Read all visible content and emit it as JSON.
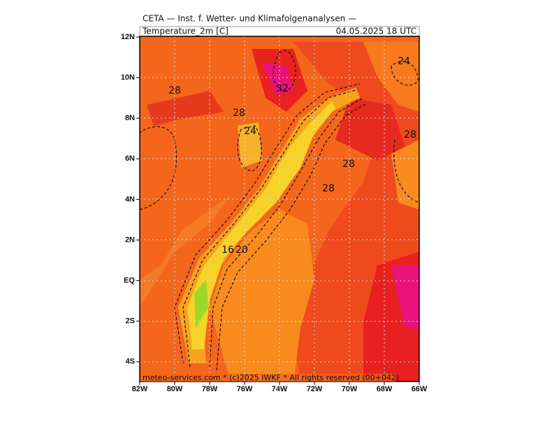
{
  "header": {
    "title": "CETA — Inst. f. Wetter- und Klimafolgenanalysen —",
    "variable": "Temperature_2m [C]",
    "valid_time": "04.05.2025 18 UTC"
  },
  "map": {
    "lat_labels": [
      "12N",
      "10N",
      "8N",
      "6N",
      "4N",
      "2N",
      "EQ",
      "2S",
      "4S"
    ],
    "lon_labels": [
      "82W",
      "80W",
      "78W",
      "76W",
      "74W",
      "72W",
      "70W",
      "68W",
      "66W"
    ],
    "contour_labels": [
      28,
      32,
      28,
      24,
      24,
      28,
      28,
      28,
      16,
      20
    ]
  },
  "footer": "meteo-services.com * (c)2025 IWKF * All rights reserved (00+042)"
}
